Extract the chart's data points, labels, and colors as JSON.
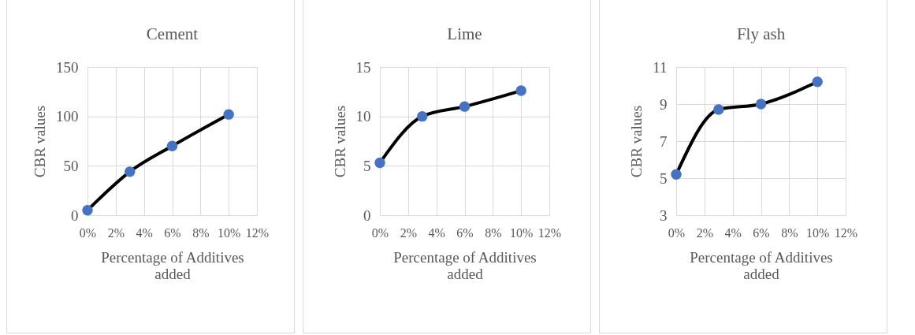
{
  "chart_data": [
    {
      "type": "line",
      "title": "Cement",
      "xlabel": "Percentage of Additives added",
      "ylabel": "CBR values",
      "x": [
        0,
        3,
        6,
        10
      ],
      "series": [
        {
          "color": "#000000",
          "colors": [
            "#4472c4",
            "#4472c4",
            "#4472c4",
            "#4472c4"
          ],
          "values": [
            5,
            44,
            70,
            102
          ]
        }
      ],
      "xlim": [
        0,
        12
      ],
      "xticks": [
        {
          "value": 0,
          "label": "0%"
        },
        {
          "value": 2,
          "label": "2%"
        },
        {
          "value": 4,
          "label": "4%"
        },
        {
          "value": 6,
          "label": "6%"
        },
        {
          "value": 8,
          "label": "8%"
        },
        {
          "value": 10,
          "label": "10%"
        },
        {
          "value": 12,
          "label": "12%"
        }
      ],
      "ylim": [
        0,
        150
      ],
      "yticks": [
        0,
        50,
        100,
        150
      ],
      "grid": true,
      "marker": "circle",
      "line_style": "solid"
    },
    {
      "type": "line",
      "title": "Lime",
      "xlabel": "Percentage of Additives added",
      "ylabel": "CBR values",
      "x": [
        0,
        3,
        6,
        10
      ],
      "series": [
        {
          "color": "#000000",
          "colors": [
            "#4472c4",
            "#4472c4",
            "#4472c4",
            "#4472c4"
          ],
          "values": [
            5.3,
            10,
            11,
            12.6
          ]
        }
      ],
      "xlim": [
        0,
        12
      ],
      "xticks": [
        {
          "value": 0,
          "label": "0%"
        },
        {
          "value": 2,
          "label": "2%"
        },
        {
          "value": 4,
          "label": "4%"
        },
        {
          "value": 6,
          "label": "6%"
        },
        {
          "value": 8,
          "label": "8%"
        },
        {
          "value": 10,
          "label": "10%"
        },
        {
          "value": 12,
          "label": "12%"
        }
      ],
      "ylim": [
        0,
        15
      ],
      "yticks": [
        0,
        5,
        10,
        15
      ],
      "grid": true,
      "marker": "circle",
      "line_style": "solid"
    },
    {
      "type": "line",
      "title": "Fly ash",
      "xlabel": "Percentage of Additives added",
      "ylabel": "CBR values",
      "x": [
        0,
        3,
        6,
        10
      ],
      "series": [
        {
          "color": "#000000",
          "colors": [
            "#4472c4",
            "#4472c4",
            "#4472c4",
            "#4472c4"
          ],
          "values": [
            5.2,
            8.7,
            9,
            10.2
          ]
        }
      ],
      "xlim": [
        0,
        12
      ],
      "xticks": [
        {
          "value": 0,
          "label": "0%"
        },
        {
          "value": 2,
          "label": "2%"
        },
        {
          "value": 4,
          "label": "4%"
        },
        {
          "value": 6,
          "label": "6%"
        },
        {
          "value": 8,
          "label": "8%"
        },
        {
          "value": 10,
          "label": "10%"
        },
        {
          "value": 12,
          "label": "12%"
        }
      ],
      "ylim": [
        3,
        11
      ],
      "yticks": [
        3,
        5,
        7,
        9,
        11
      ],
      "grid": true,
      "marker": "circle",
      "line_style": "solid"
    }
  ]
}
